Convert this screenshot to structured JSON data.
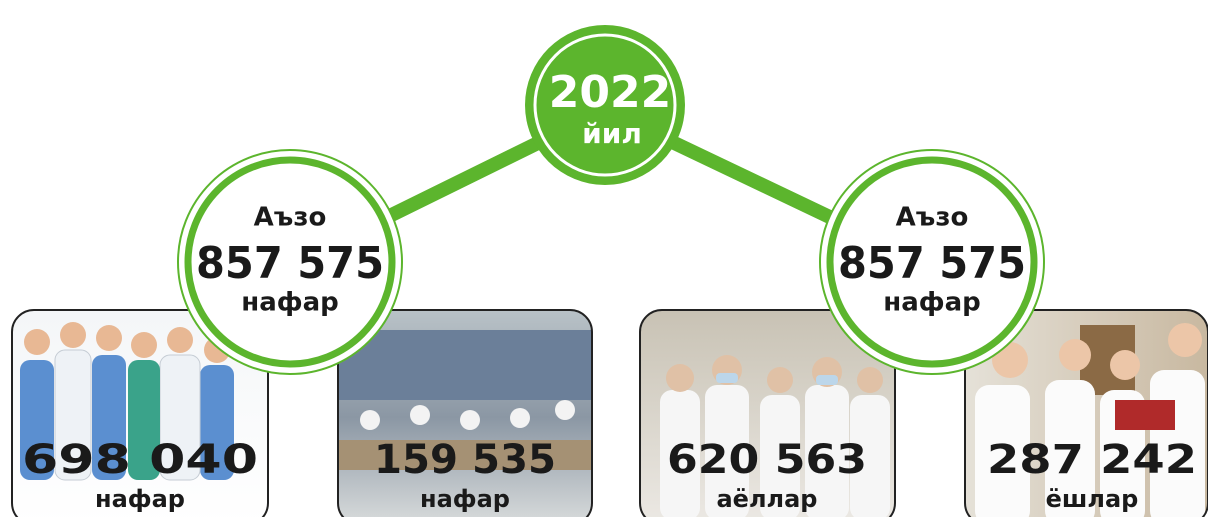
{
  "header": {
    "year": "2022",
    "year_unit": "йил"
  },
  "members": [
    {
      "label": "Аъзо",
      "value": "857 575",
      "unit": "нафар"
    },
    {
      "label": "Аъзо",
      "value": "857 575",
      "unit": "нафар"
    }
  ],
  "cards": [
    {
      "value": "698 040",
      "unit": "нафар"
    },
    {
      "value": "159 535",
      "unit": "нафар"
    },
    {
      "value": "620 563",
      "unit": "аёллар"
    },
    {
      "value": "287 242",
      "unit": "ёшлар"
    }
  ]
}
